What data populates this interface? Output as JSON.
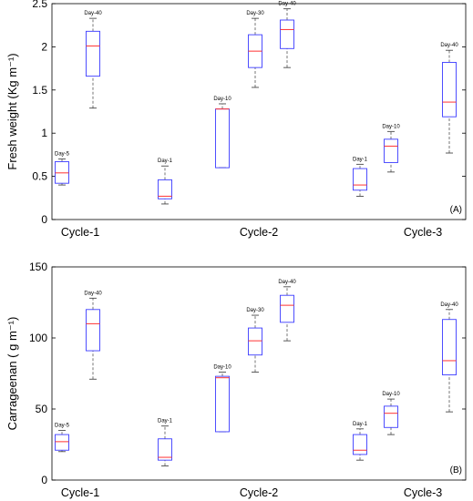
{
  "chart_data": [
    {
      "type": "box",
      "panel_label": "(A)",
      "ylabel": "Fresh weight (Kg m⁻¹)",
      "ylim": [
        0,
        2.5
      ],
      "yticks": [
        0,
        0.5,
        1,
        1.5,
        2,
        2.5
      ],
      "ytick_labels": [
        "0",
        "0.5",
        "1",
        "1.5",
        "2",
        "2.5"
      ],
      "categories": [
        "Cycle-1",
        "Cycle-2",
        "Cycle-3"
      ],
      "box_color": "#3b3bff",
      "median_color": "#ff3333",
      "whisker_color": "#555555",
      "boxes": [
        {
          "label": "Day-5",
          "group": "Cycle-1",
          "whisker_low": 0.4,
          "q1": 0.42,
          "median": 0.54,
          "q3": 0.67,
          "whisker_high": 0.7
        },
        {
          "label": "Day-40",
          "group": "Cycle-1",
          "whisker_low": 1.29,
          "q1": 1.66,
          "median": 2.01,
          "q3": 2.18,
          "whisker_high": 2.33
        },
        {
          "label": "Day-1",
          "group": "Cycle-2",
          "whisker_low": 0.18,
          "q1": 0.24,
          "median": 0.27,
          "q3": 0.46,
          "whisker_high": 0.62
        },
        {
          "label": "Day-10",
          "group": "Cycle-2",
          "whisker_low": 0.6,
          "q1": 0.6,
          "median": 1.28,
          "q3": 1.28,
          "whisker_high": 1.34
        },
        {
          "label": "Day-30",
          "group": "Cycle-2",
          "whisker_low": 1.53,
          "q1": 1.76,
          "median": 1.95,
          "q3": 2.14,
          "whisker_high": 2.33
        },
        {
          "label": "Day-40",
          "group": "Cycle-2",
          "whisker_low": 1.76,
          "q1": 1.98,
          "median": 2.2,
          "q3": 2.31,
          "whisker_high": 2.44
        },
        {
          "label": "Day-1",
          "group": "Cycle-3",
          "whisker_low": 0.27,
          "q1": 0.34,
          "median": 0.4,
          "q3": 0.59,
          "whisker_high": 0.64
        },
        {
          "label": "Day-10",
          "group": "Cycle-3",
          "whisker_low": 0.55,
          "q1": 0.66,
          "median": 0.85,
          "q3": 0.93,
          "whisker_high": 1.02
        },
        {
          "label": "Day-40",
          "group": "Cycle-3",
          "whisker_low": 0.77,
          "q1": 1.19,
          "median": 1.36,
          "q3": 1.82,
          "whisker_high": 1.96
        }
      ]
    },
    {
      "type": "box",
      "panel_label": "(B)",
      "ylabel": "Carrageenan ( g m⁻¹)",
      "ylim": [
        0,
        150
      ],
      "yticks": [
        0,
        50,
        100,
        150
      ],
      "ytick_labels": [
        "0",
        "50",
        "100",
        "150"
      ],
      "categories": [
        "Cycle-1",
        "Cycle-2",
        "Cycle-3"
      ],
      "box_color": "#3b3bff",
      "median_color": "#ff3333",
      "whisker_color": "#555555",
      "boxes": [
        {
          "label": "Day-5",
          "group": "Cycle-1",
          "whisker_low": 20,
          "q1": 21,
          "median": 27,
          "q3": 32,
          "whisker_high": 35
        },
        {
          "label": "Day-40",
          "group": "Cycle-1",
          "whisker_low": 71,
          "q1": 91,
          "median": 110,
          "q3": 120,
          "whisker_high": 128
        },
        {
          "label": "Day-1",
          "group": "Cycle-2",
          "whisker_low": 10,
          "q1": 14,
          "median": 16,
          "q3": 29,
          "whisker_high": 38
        },
        {
          "label": "Day-10",
          "group": "Cycle-2",
          "whisker_low": 34,
          "q1": 34,
          "median": 72,
          "q3": 73,
          "whisker_high": 76
        },
        {
          "label": "Day-30",
          "group": "Cycle-2",
          "whisker_low": 76,
          "q1": 88,
          "median": 98,
          "q3": 107,
          "whisker_high": 116
        },
        {
          "label": "Day-40",
          "group": "Cycle-2",
          "whisker_low": 98,
          "q1": 111,
          "median": 123,
          "q3": 130,
          "whisker_high": 136
        },
        {
          "label": "Day-1",
          "group": "Cycle-3",
          "whisker_low": 14,
          "q1": 18,
          "median": 21,
          "q3": 32,
          "whisker_high": 36
        },
        {
          "label": "Day-10",
          "group": "Cycle-3",
          "whisker_low": 32,
          "q1": 37,
          "median": 47,
          "q3": 52,
          "whisker_high": 57
        },
        {
          "label": "Day-40",
          "group": "Cycle-3",
          "whisker_low": 48,
          "q1": 74,
          "median": 84,
          "q3": 113,
          "whisker_high": 120
        }
      ]
    }
  ]
}
